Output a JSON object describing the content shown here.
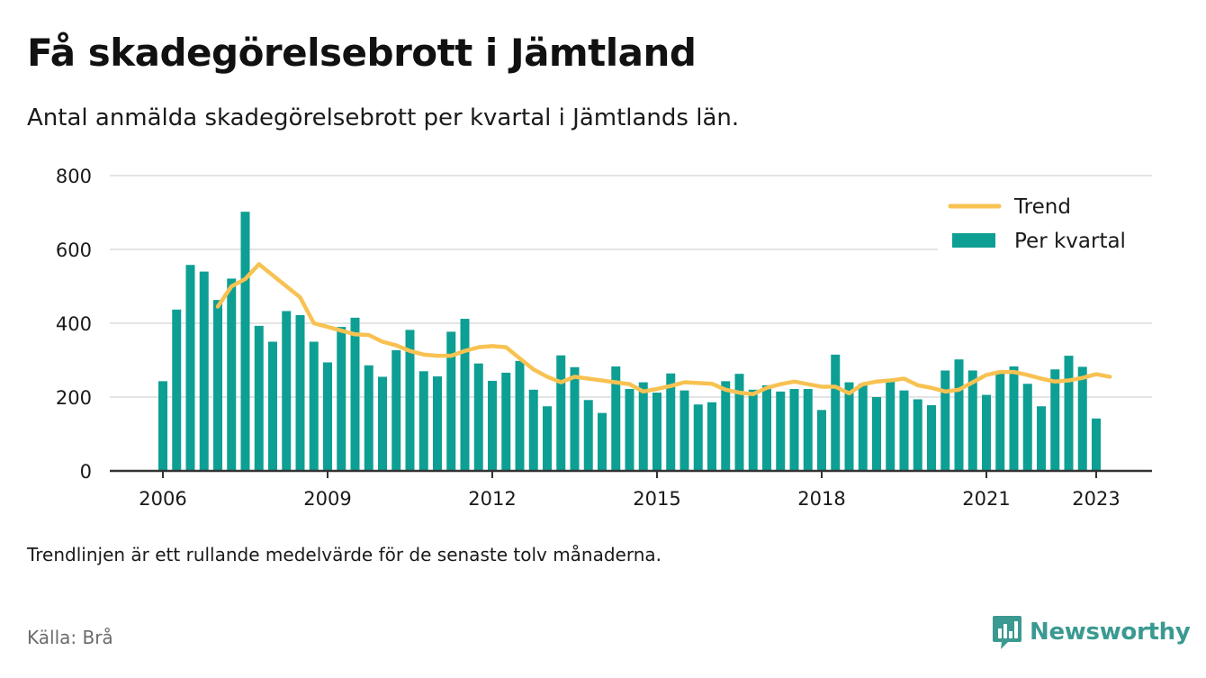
{
  "title": "Få skadegörelsebrott i Jämtland",
  "subtitle": "Antal anmälda skadegörelsebrott per kvartal i Jämtlands län.",
  "footnote": "Trendlinjen är ett rullande medelvärde för de senaste tolv månaderna.",
  "source": "Källa: Brå",
  "brand": {
    "name": "Newsworthy",
    "icon": "newsworthy-chart-icon"
  },
  "colors": {
    "bar": "#0e9f94",
    "trend": "#f8c252",
    "grid": "#dcdcdc",
    "axis": "#333333",
    "brand": "#3a9a91"
  },
  "chart_data": {
    "type": "bar",
    "title": "Få skadegörelsebrott i Jämtland",
    "subtitle": "Antal anmälda skadegörelsebrott per kvartal i Jämtlands län.",
    "xlabel": "",
    "ylabel": "",
    "ylim": [
      0,
      800
    ],
    "yticks": [
      0,
      200,
      400,
      600,
      800
    ],
    "xticks": [
      "2006",
      "2009",
      "2012",
      "2015",
      "2018",
      "2021",
      "2023"
    ],
    "grid": true,
    "legend": "top-right",
    "start_year": 2006,
    "series": [
      {
        "name": "Per kvartal",
        "kind": "bar",
        "values": [
          243,
          437,
          558,
          540,
          463,
          521,
          702,
          393,
          350,
          433,
          422,
          350,
          294,
          390,
          415,
          286,
          255,
          327,
          382,
          270,
          256,
          377,
          412,
          291,
          244,
          266,
          298,
          220,
          175,
          313,
          281,
          192,
          157,
          283,
          222,
          240,
          212,
          264,
          218,
          180,
          186,
          243,
          263,
          220,
          232,
          215,
          222,
          222,
          165,
          315,
          240,
          236,
          200,
          244,
          218,
          194,
          178,
          272,
          302,
          272,
          206,
          268,
          283,
          236,
          175,
          275,
          312,
          282,
          142
        ]
      },
      {
        "name": "Trend",
        "kind": "line",
        "start_index": 4,
        "values": [
          445,
          500,
          520,
          560,
          530,
          500,
          470,
          400,
          390,
          380,
          370,
          368,
          350,
          340,
          325,
          315,
          312,
          312,
          325,
          335,
          338,
          335,
          305,
          275,
          255,
          240,
          255,
          250,
          245,
          240,
          235,
          215,
          222,
          230,
          240,
          238,
          236,
          220,
          212,
          208,
          225,
          235,
          242,
          235,
          228,
          228,
          210,
          235,
          242,
          245,
          250,
          232,
          225,
          215,
          220,
          240,
          260,
          268,
          268,
          260,
          250,
          242,
          245,
          252,
          262,
          255
        ]
      }
    ]
  }
}
